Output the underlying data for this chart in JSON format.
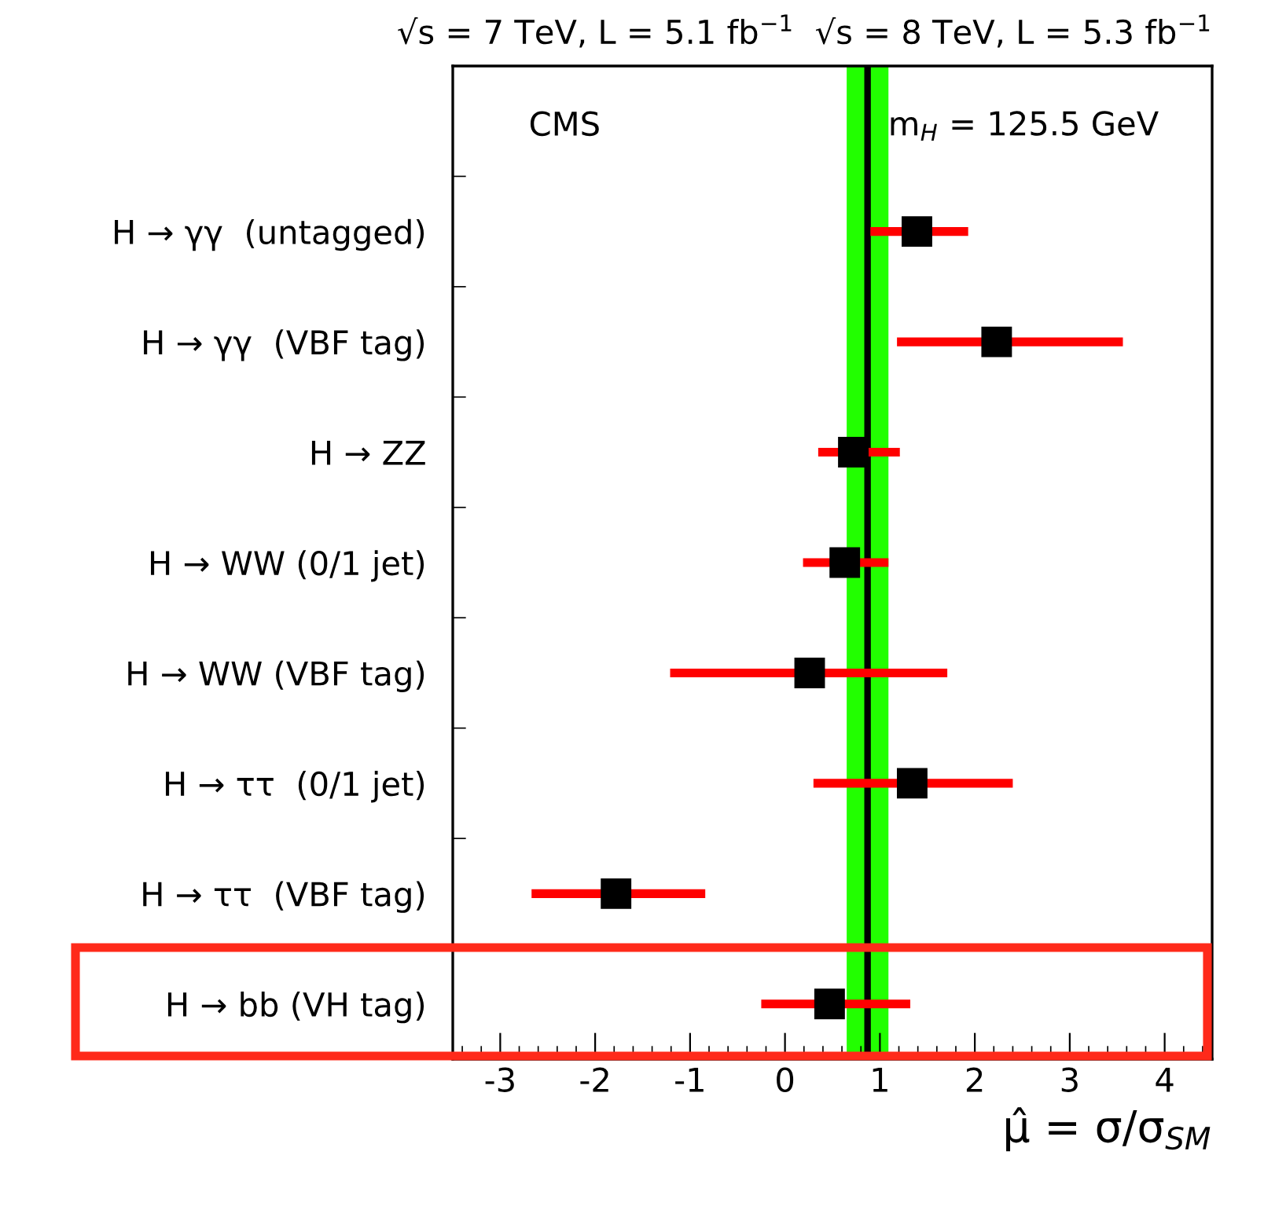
{
  "chart_data": {
    "type": "scatter",
    "orientation": "horizontal",
    "title": "√s = 7 TeV, L = 5.1 fb$^{−1}$  √s = 8 TeV, L = 5.3 fb$^{−1}$",
    "xlabel": "μ̂ = σ/σ$_{SM}$",
    "annotations": [
      "CMS",
      "m$_{H}$ = 125.5 GeV"
    ],
    "categories": [
      "H → γγ  (untagged)",
      "H → γγ  (VBF tag)",
      "H → ZZ",
      "H → WW (0/1 jet)",
      "H → WW (VBF tag)",
      "H → ττ  (0/1 jet)",
      "H → ττ  (VBF tag)",
      "H → bb (VH tag)"
    ],
    "series": [
      {
        "color": "#000000",
        "values": [
          1.39,
          2.23,
          0.72,
          0.63,
          0.26,
          1.34,
          -1.78,
          0.47
        ],
        "errors": [
          [
            0.9,
            1.93
          ],
          [
            1.18,
            3.56
          ],
          [
            0.35,
            1.21
          ],
          [
            0.19,
            1.09
          ],
          [
            -1.21,
            1.71
          ],
          [
            0.3,
            2.4
          ],
          [
            -2.67,
            -0.84
          ],
          [
            -0.25,
            1.32
          ]
        ]
      }
    ],
    "marker": "square",
    "xlim": [
      -3.5,
      4.5
    ],
    "xticks": [
      {
        "value": -3,
        "label": "-3"
      },
      {
        "value": -2,
        "label": "-2"
      },
      {
        "value": -1,
        "label": "-1"
      },
      0,
      1,
      2,
      3,
      4
    ],
    "ref_lines": [
      {
        "axis": "x",
        "value": 0.87,
        "color": "#000000"
      }
    ],
    "bands": [
      {
        "axis": "x",
        "from": 0.65,
        "to": 1.09,
        "color": "#22ff00"
      }
    ],
    "grid": false,
    "legend": false
  }
}
